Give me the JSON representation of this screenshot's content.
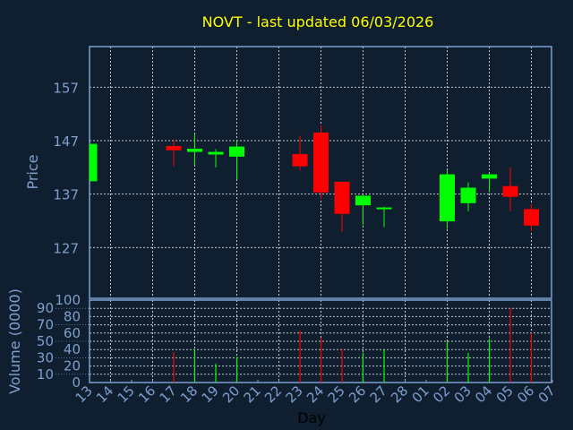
{
  "chart_data": [
    {
      "type": "candlestick",
      "title": "NOVT - last updated 06/03/2026",
      "ylabel": "Price",
      "xlabel": "Day",
      "ylim": [
        117.5,
        164.6
      ],
      "yticks": [
        "127",
        "137",
        "147",
        "157"
      ],
      "grid": true,
      "colors": {
        "up": "#00ff00",
        "down": "#ff0000",
        "title": "#ffff00",
        "axis": "#7f9fcf",
        "background": "#0f1f30",
        "grid": "#c8c8c8"
      },
      "categories": [
        "13",
        "14",
        "15",
        "16",
        "17",
        "18",
        "19",
        "20",
        "21",
        "22",
        "23",
        "24",
        "25",
        "26",
        "27",
        "28",
        "01",
        "02",
        "03",
        "04",
        "05",
        "06",
        "07"
      ],
      "candles": [
        {
          "day": "13",
          "open": 139.4,
          "high": 146.4,
          "low": 139.4,
          "close": 146.4
        },
        {
          "day": "17",
          "open": 146.0,
          "high": 147.2,
          "low": 142.2,
          "close": 145.2
        },
        {
          "day": "18",
          "open": 144.9,
          "high": 148.2,
          "low": 142.5,
          "close": 145.5
        },
        {
          "day": "19",
          "open": 144.4,
          "high": 145.4,
          "low": 142.0,
          "close": 144.9
        },
        {
          "day": "20",
          "open": 144.0,
          "high": 147.0,
          "low": 139.8,
          "close": 145.9
        },
        {
          "day": "23",
          "open": 144.5,
          "high": 147.9,
          "low": 141.5,
          "close": 142.2
        },
        {
          "day": "24",
          "open": 148.5,
          "high": 149.9,
          "low": 136.1,
          "close": 137.3
        },
        {
          "day": "25",
          "open": 139.3,
          "high": 139.3,
          "low": 130.0,
          "close": 133.3
        },
        {
          "day": "26",
          "open": 134.9,
          "high": 136.7,
          "low": 131.2,
          "close": 136.7
        },
        {
          "day": "27",
          "open": 134.2,
          "high": 134.6,
          "low": 130.8,
          "close": 134.5
        },
        {
          "day": "02",
          "open": 131.9,
          "high": 141.5,
          "low": 130.5,
          "close": 140.7
        },
        {
          "day": "03",
          "open": 135.3,
          "high": 139.2,
          "low": 133.8,
          "close": 138.2
        },
        {
          "day": "04",
          "open": 139.9,
          "high": 140.9,
          "low": 137.3,
          "close": 140.7
        },
        {
          "day": "05",
          "open": 138.5,
          "high": 142.0,
          "low": 133.8,
          "close": 136.5
        },
        {
          "day": "06",
          "open": 134.2,
          "high": 135.2,
          "low": 130.0,
          "close": 131.1
        }
      ]
    },
    {
      "type": "bar",
      "ylabel": "Volume (0000)",
      "xlabel": "Day",
      "ylim": [
        0,
        100
      ],
      "yticks": [
        "0",
        "10",
        "20",
        "30",
        "40",
        "50",
        "60",
        "70",
        "80",
        "90",
        "100"
      ],
      "grid": true,
      "bars": [
        {
          "day": "17",
          "value": 37,
          "direction": "down"
        },
        {
          "day": "18",
          "value": 40,
          "direction": "up"
        },
        {
          "day": "19",
          "value": 23,
          "direction": "up"
        },
        {
          "day": "20",
          "value": 31,
          "direction": "up"
        },
        {
          "day": "23",
          "value": 63,
          "direction": "down"
        },
        {
          "day": "24",
          "value": 54,
          "direction": "down"
        },
        {
          "day": "25",
          "value": 41,
          "direction": "down"
        },
        {
          "day": "26",
          "value": 36,
          "direction": "up"
        },
        {
          "day": "27",
          "value": 40,
          "direction": "up"
        },
        {
          "day": "02",
          "value": 50,
          "direction": "up"
        },
        {
          "day": "03",
          "value": 36,
          "direction": "up"
        },
        {
          "day": "04",
          "value": 53,
          "direction": "up"
        },
        {
          "day": "05",
          "value": 91,
          "direction": "down"
        },
        {
          "day": "06",
          "value": 60,
          "direction": "down"
        }
      ]
    }
  ]
}
